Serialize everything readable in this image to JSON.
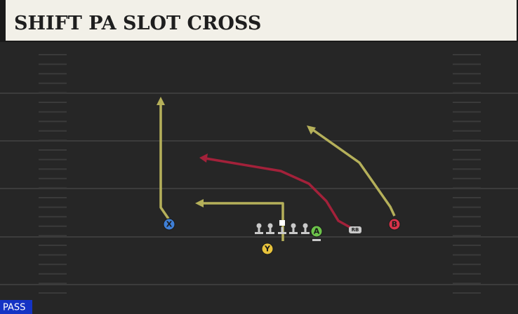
{
  "header": {
    "title": "SHIFT PA SLOT CROSS"
  },
  "badge": "PASS",
  "players": [
    {
      "label": "X"
    },
    {
      "label": "Y"
    },
    {
      "label": "A"
    },
    {
      "label": "B"
    },
    {
      "label": "RB"
    }
  ]
}
